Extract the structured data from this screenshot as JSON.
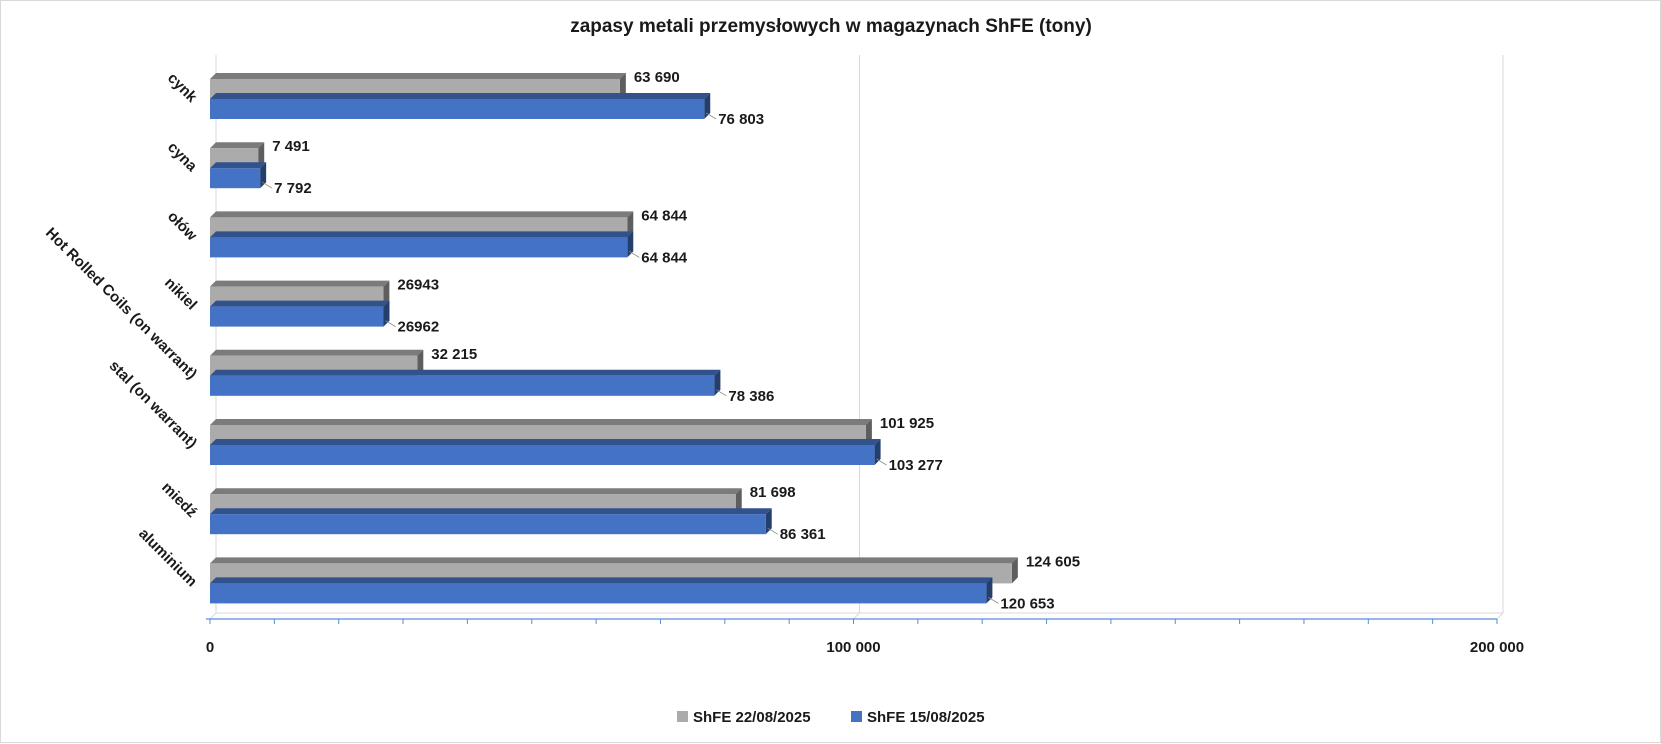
{
  "chart_data": {
    "type": "bar",
    "orientation": "horizontal",
    "style": "3d",
    "title": "zapasy metali przemysłowych w magazynach ShFE (tony)",
    "categories": [
      "cynk",
      "cyna",
      "ołów",
      "nikiel",
      "Hot Rolled Coils (on warrant)",
      "stal (on warrant)",
      "miedź",
      "aluminium"
    ],
    "series": [
      {
        "name": "ShFE 22/08/2025",
        "color": "#ababab",
        "values": [
          63690,
          7491,
          64844,
          26943,
          32215,
          101925,
          81698,
          124605
        ],
        "labels": [
          "63 690",
          "7 491",
          "64 844",
          "26943",
          "32 215",
          "101 925",
          "81 698",
          "124 605"
        ]
      },
      {
        "name": "ShFE 15/08/2025",
        "color": "#4472c4",
        "values": [
          76803,
          7792,
          64844,
          26962,
          78386,
          103277,
          86361,
          120653
        ],
        "labels": [
          "76 803",
          "7 792",
          "64 844",
          "26962",
          "78 386",
          "103 277",
          "86 361",
          "120 653"
        ]
      }
    ],
    "xlim": [
      0,
      200000
    ],
    "x_ticks": [
      0,
      100000,
      200000
    ],
    "x_tick_labels": [
      "0",
      "100 000",
      "200 000"
    ],
    "legend_position": "bottom",
    "grid": true
  }
}
